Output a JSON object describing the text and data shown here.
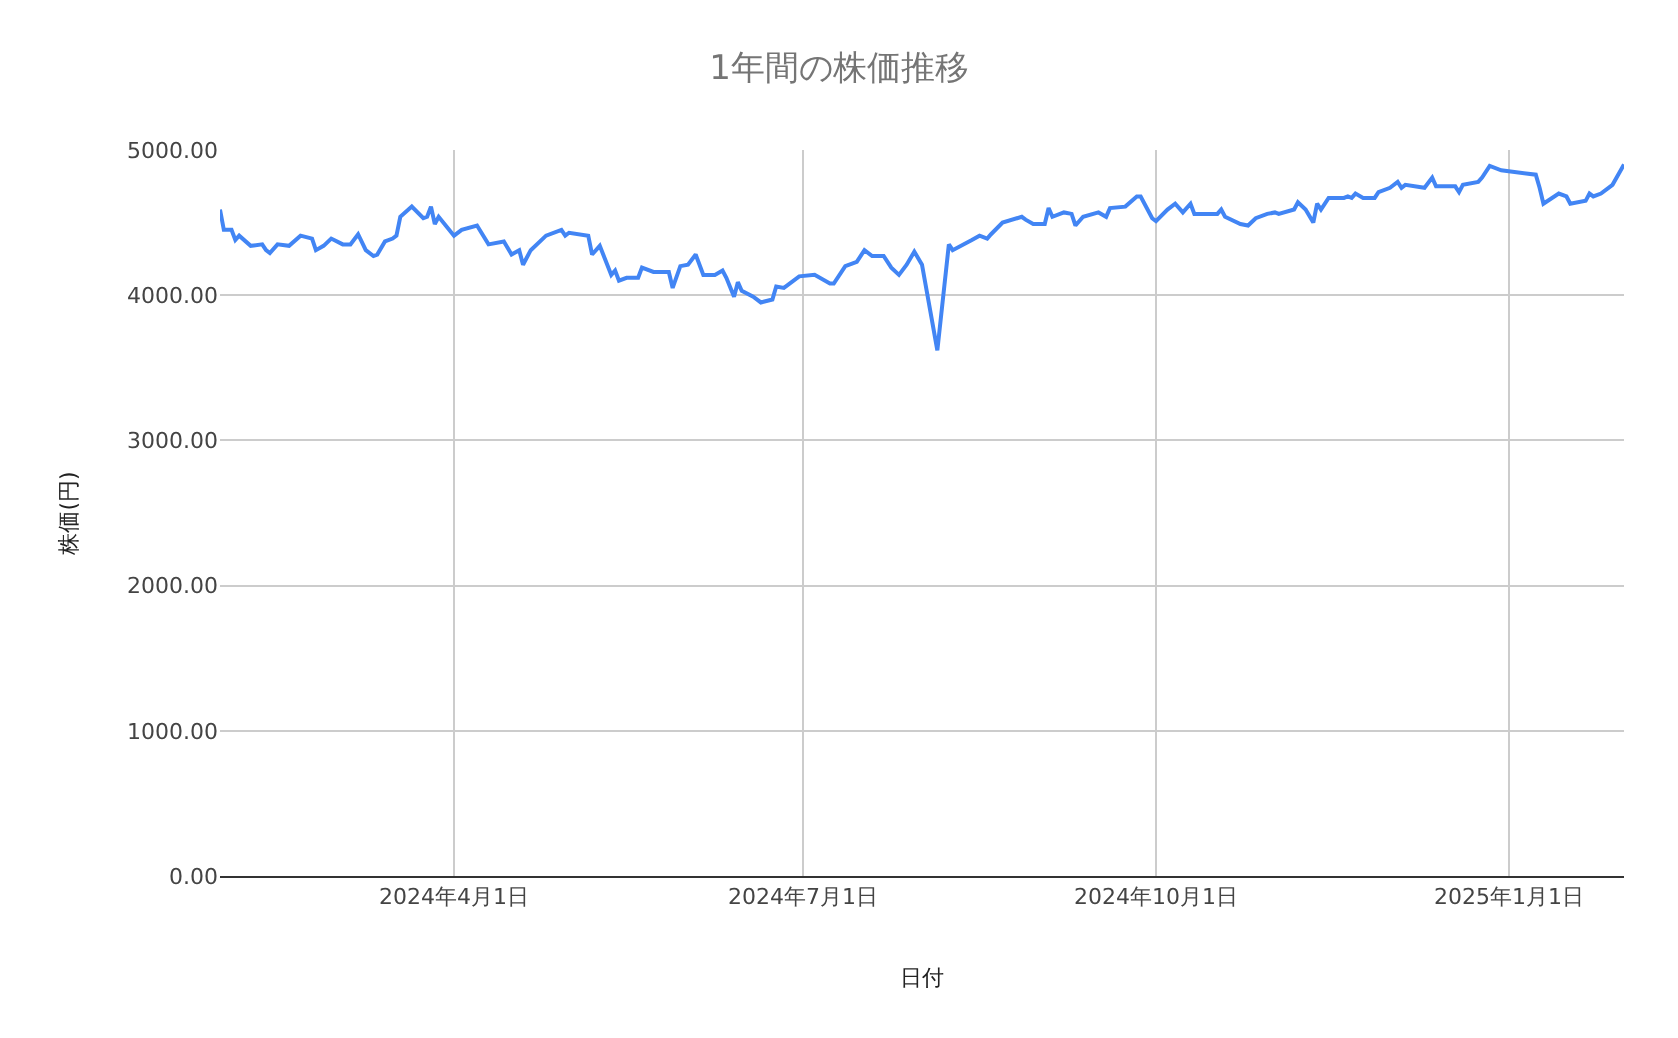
{
  "chart_data": {
    "type": "line",
    "title": "1年間の株価推移",
    "xlabel": "日付",
    "ylabel": "株価(円)",
    "x": [
      "2024-01-31",
      "2024-02-01",
      "2024-02-03",
      "2024-02-04",
      "2024-02-05",
      "2024-02-08",
      "2024-02-11",
      "2024-02-12",
      "2024-02-13",
      "2024-02-15",
      "2024-02-18",
      "2024-02-21",
      "2024-02-24",
      "2024-02-25",
      "2024-02-27",
      "2024-02-29",
      "2024-03-03",
      "2024-03-05",
      "2024-03-07",
      "2024-03-09",
      "2024-03-11",
      "2024-03-12",
      "2024-03-14",
      "2024-03-16",
      "2024-03-17",
      "2024-03-18",
      "2024-03-21",
      "2024-03-24",
      "2024-03-25",
      "2024-03-26",
      "2024-03-27",
      "2024-03-28",
      "2024-04-01",
      "2024-04-03",
      "2024-04-07",
      "2024-04-10",
      "2024-04-14",
      "2024-04-16",
      "2024-04-18",
      "2024-04-19",
      "2024-04-21",
      "2024-04-25",
      "2024-04-29",
      "2024-04-30",
      "2024-05-01",
      "2024-05-06",
      "2024-05-07",
      "2024-05-09",
      "2024-05-12",
      "2024-05-13",
      "2024-05-14",
      "2024-05-16",
      "2024-05-19",
      "2024-05-20",
      "2024-05-23",
      "2024-05-27",
      "2024-05-28",
      "2024-05-30",
      "2024-06-01",
      "2024-06-03",
      "2024-06-05",
      "2024-06-08",
      "2024-06-10",
      "2024-06-11",
      "2024-06-13",
      "2024-06-14",
      "2024-06-15",
      "2024-06-18",
      "2024-06-20",
      "2024-06-23",
      "2024-06-24",
      "2024-06-26",
      "2024-06-30",
      "2024-07-04",
      "2024-07-08",
      "2024-07-09",
      "2024-07-12",
      "2024-07-15",
      "2024-07-17",
      "2024-07-19",
      "2024-07-22",
      "2024-07-24",
      "2024-07-26",
      "2024-07-28",
      "2024-07-30",
      "2024-08-01",
      "2024-08-05",
      "2024-08-08",
      "2024-08-09",
      "2024-08-14",
      "2024-08-16",
      "2024-08-18",
      "2024-08-19",
      "2024-08-22",
      "2024-08-27",
      "2024-08-28",
      "2024-08-30",
      "2024-09-02",
      "2024-09-03",
      "2024-09-04",
      "2024-09-07",
      "2024-09-09",
      "2024-09-10",
      "2024-09-12",
      "2024-09-16",
      "2024-09-18",
      "2024-09-19",
      "2024-09-23",
      "2024-09-26",
      "2024-09-27",
      "2024-09-30",
      "2024-10-01",
      "2024-10-04",
      "2024-10-06",
      "2024-10-08",
      "2024-10-10",
      "2024-10-11",
      "2024-10-17",
      "2024-10-18",
      "2024-10-19",
      "2024-10-23",
      "2024-10-25",
      "2024-10-27",
      "2024-10-30",
      "2024-11-01",
      "2024-11-02",
      "2024-11-06",
      "2024-11-07",
      "2024-11-09",
      "2024-11-11",
      "2024-11-12",
      "2024-11-13",
      "2024-11-15",
      "2024-11-19",
      "2024-11-20",
      "2024-11-21",
      "2024-11-22",
      "2024-11-24",
      "2024-11-27",
      "2024-11-28",
      "2024-12-01",
      "2024-12-03",
      "2024-12-04",
      "2024-12-05",
      "2024-12-10",
      "2024-12-12",
      "2024-12-13",
      "2024-12-18",
      "2024-12-19",
      "2024-12-20",
      "2024-12-24",
      "2024-12-25",
      "2024-12-27",
      "2024-12-30",
      "2025-01-08",
      "2025-01-09",
      "2025-01-10",
      "2025-01-14",
      "2025-01-16",
      "2025-01-17",
      "2025-01-21",
      "2025-01-22",
      "2025-01-23",
      "2025-01-25",
      "2025-01-28",
      "2025-01-31"
    ],
    "series": [
      {
        "color": "#4285f4",
        "values": [
          4590,
          4450,
          4450,
          4380,
          4410,
          4340,
          4350,
          4310,
          4290,
          4350,
          4340,
          4410,
          4390,
          4310,
          4340,
          4390,
          4350,
          4350,
          4420,
          4310,
          4270,
          4280,
          4370,
          4390,
          4410,
          4540,
          4610,
          4530,
          4540,
          4610,
          4490,
          4540,
          4410,
          4450,
          4480,
          4350,
          4370,
          4280,
          4310,
          4210,
          4310,
          4410,
          4450,
          4410,
          4430,
          4410,
          4280,
          4340,
          4140,
          4170,
          4100,
          4120,
          4120,
          4190,
          4160,
          4160,
          4050,
          4200,
          4210,
          4280,
          4140,
          4140,
          4170,
          4120,
          3990,
          4090,
          4030,
          3990,
          3950,
          3970,
          4060,
          4050,
          4130,
          4140,
          4080,
          4080,
          4200,
          4230,
          4310,
          4270,
          4270,
          4190,
          4140,
          4210,
          4300,
          4210,
          3620,
          4350,
          4310,
          4380,
          4410,
          4390,
          4420,
          4500,
          4540,
          4520,
          4490,
          4490,
          4600,
          4540,
          4570,
          4560,
          4480,
          4540,
          4570,
          4540,
          4600,
          4610,
          4680,
          4680,
          4530,
          4510,
          4590,
          4630,
          4570,
          4630,
          4560,
          4560,
          4590,
          4540,
          4490,
          4480,
          4530,
          4560,
          4570,
          4560,
          4590,
          4640,
          4590,
          4500,
          4630,
          4590,
          4670,
          4670,
          4680,
          4670,
          4700,
          4670,
          4670,
          4710,
          4740,
          4780,
          4740,
          4760,
          4740,
          4810,
          4750,
          4750,
          4710,
          4760,
          4780,
          4810,
          4890,
          4860,
          4830,
          4740,
          4630,
          4700,
          4680,
          4630,
          4650,
          4700,
          4680,
          4700,
          4760,
          4900
        ]
      }
    ],
    "xlim": [
      "2024-01-31",
      "2025-01-31"
    ],
    "xticks": [
      {
        "value": "2024-04-01",
        "label": "2024年4月1日"
      },
      {
        "value": "2024-07-01",
        "label": "2024年7月1日"
      },
      {
        "value": "2024-10-01",
        "label": "2024年10月1日"
      },
      {
        "value": "2025-01-01",
        "label": "2025年1月1日"
      }
    ],
    "ylim": [
      0,
      5000
    ],
    "yticks": [
      {
        "value": 0,
        "label": "0.00"
      },
      {
        "value": 1000,
        "label": "1000.00"
      },
      {
        "value": 2000,
        "label": "2000.00"
      },
      {
        "value": 3000,
        "label": "3000.00"
      },
      {
        "value": 4000,
        "label": "4000.00"
      },
      {
        "value": 5000,
        "label": "5000.00"
      }
    ],
    "grid": true,
    "marker": "none",
    "line_style": "solid"
  }
}
